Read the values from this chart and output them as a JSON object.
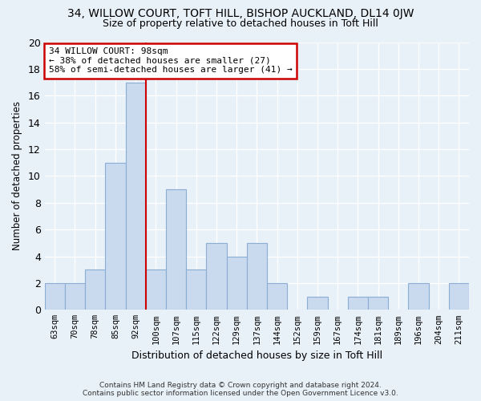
{
  "title": "34, WILLOW COURT, TOFT HILL, BISHOP AUCKLAND, DL14 0JW",
  "subtitle": "Size of property relative to detached houses in Toft Hill",
  "xlabel": "Distribution of detached houses by size in Toft Hill",
  "ylabel": "Number of detached properties",
  "categories": [
    "63sqm",
    "70sqm",
    "78sqm",
    "85sqm",
    "92sqm",
    "100sqm",
    "107sqm",
    "115sqm",
    "122sqm",
    "129sqm",
    "137sqm",
    "144sqm",
    "152sqm",
    "159sqm",
    "167sqm",
    "174sqm",
    "181sqm",
    "189sqm",
    "196sqm",
    "204sqm",
    "211sqm"
  ],
  "values": [
    2,
    2,
    3,
    11,
    17,
    3,
    9,
    3,
    5,
    4,
    5,
    2,
    0,
    1,
    0,
    1,
    1,
    0,
    2,
    0,
    2
  ],
  "bar_color": "#c9d9ee",
  "bar_edge_color": "#8bafd4",
  "property_label": "34 WILLOW COURT: 98sqm",
  "annotation_line1": "← 38% of detached houses are smaller (27)",
  "annotation_line2": "58% of semi-detached houses are larger (41) →",
  "annotation_box_color": "#ffffff",
  "annotation_border_color": "#cc0000",
  "vline_color": "#cc0000",
  "vline_x_index": 4.5,
  "ylim": [
    0,
    20
  ],
  "yticks": [
    0,
    2,
    4,
    6,
    8,
    10,
    12,
    14,
    16,
    18,
    20
  ],
  "background_color": "#e8f0f8",
  "grid_color": "#ffffff",
  "footer_line1": "Contains HM Land Registry data © Crown copyright and database right 2024.",
  "footer_line2": "Contains public sector information licensed under the Open Government Licence v3.0."
}
